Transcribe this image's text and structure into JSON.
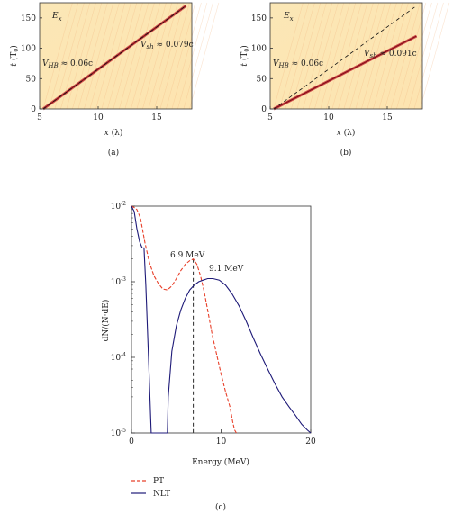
{
  "chart_data": [
    {
      "panel": "(a)",
      "type": "heatmap",
      "field_label": "E",
      "field_sub": "x",
      "xlabel_main": "x",
      "xlabel_unit": "(λ)",
      "ylabel_main": "t",
      "ylabel_unit_pre": "(T",
      "ylabel_unit_sub": "0",
      "ylabel_unit_post": ")",
      "xlim": [
        5,
        18
      ],
      "ylim": [
        0,
        175
      ],
      "xticks": [
        "5",
        "10",
        "15"
      ],
      "yticks": [
        "0",
        "50",
        "100",
        "150"
      ],
      "annotations": [
        {
          "V": "V",
          "sub": "HB",
          "rest": " ≈ 0.06c"
        },
        {
          "V": "V",
          "sub": "sh",
          "rest": " ≈ 0.079c"
        }
      ],
      "front_line": {
        "x": [
          5.3,
          17.5
        ],
        "t": [
          0,
          170
        ]
      },
      "dashed_line": {
        "x": [
          5.3,
          17.5
        ],
        "t": [
          0,
          170
        ]
      }
    },
    {
      "panel": "(b)",
      "type": "heatmap",
      "field_label": "E",
      "field_sub": "x",
      "xlabel_main": "x",
      "xlabel_unit": "(λ)",
      "ylabel_main": "t",
      "ylabel_unit_pre": "(T",
      "ylabel_unit_sub": "0",
      "ylabel_unit_post": ")",
      "xlim": [
        5,
        18
      ],
      "ylim": [
        0,
        175
      ],
      "xticks": [
        "5",
        "10",
        "15"
      ],
      "yticks": [
        "0",
        "50",
        "100",
        "150"
      ],
      "annotations": [
        {
          "V": "V",
          "sub": "HB",
          "rest": " ≈ 0.06c"
        },
        {
          "V": "V",
          "sub": "sh",
          "rest": " ≈ 0.091c"
        }
      ],
      "front_line": {
        "x": [
          5.3,
          17.5
        ],
        "t": [
          0,
          120
        ]
      },
      "dashed_line": {
        "x": [
          5.3,
          17.5
        ],
        "t": [
          0,
          170
        ]
      }
    },
    {
      "panel": "(c)",
      "type": "line",
      "xlabel": "Energy (MeV)",
      "ylabel": "dN/(N·dE)",
      "xlim": [
        0,
        20
      ],
      "ylim": [
        1e-05,
        0.01
      ],
      "log_y": true,
      "xticks": [
        "0",
        "10",
        "20"
      ],
      "yticks": [
        {
          "base": "10",
          "exp": "-2"
        },
        {
          "base": "10",
          "exp": "-3"
        },
        {
          "base": "10",
          "exp": "-4"
        },
        {
          "base": "10",
          "exp": "-5"
        }
      ],
      "series": [
        {
          "name": "PT",
          "color": "#e8402a",
          "style": "dashed",
          "x": [
            0,
            0.3,
            0.6,
            1.0,
            1.5,
            2.0,
            2.5,
            3.0,
            3.5,
            4.0,
            4.5,
            5.0,
            5.5,
            6.0,
            6.5,
            6.9,
            7.3,
            7.7,
            8.1,
            8.5,
            9.0,
            9.5,
            10.0,
            10.5,
            11.0,
            11.3,
            11.5,
            11.7
          ],
          "y": [
            0.01,
            0.0096,
            0.009,
            0.007,
            0.0033,
            0.0018,
            0.0012,
            0.00095,
            0.0008,
            0.00078,
            0.00088,
            0.0011,
            0.0014,
            0.0017,
            0.0019,
            0.002,
            0.0017,
            0.0012,
            0.00075,
            0.00042,
            0.0002,
            0.00011,
            6e-05,
            3.5e-05,
            2.2e-05,
            1.4e-05,
            1.1e-05,
            1e-05
          ]
        },
        {
          "name": "NLT",
          "color": "#1e1a78",
          "style": "solid",
          "x": [
            0,
            0.3,
            0.6,
            0.9,
            1.2,
            1.4,
            1.6,
            1.9,
            2.2,
            2.6,
            3.0,
            3.4,
            3.8,
            4.0,
            4.1,
            4.5,
            5.0,
            5.5,
            6.0,
            6.5,
            7.0,
            7.5,
            8.0,
            8.5,
            9.1,
            9.8,
            10.5,
            11.2,
            12.0,
            12.8,
            13.6,
            14.4,
            15.2,
            16.0,
            16.8,
            17.6,
            18.3,
            19.0,
            19.6,
            20.0
          ],
          "y": [
            0.01,
            0.0085,
            0.005,
            0.0034,
            0.0028,
            0.0028,
            0.0009,
            0.0001,
            1e-05,
            1e-05,
            1e-05,
            1e-05,
            1e-05,
            1e-05,
            3e-05,
            0.00012,
            0.00026,
            0.00042,
            0.0006,
            0.00078,
            0.0009,
            0.001,
            0.00105,
            0.0011,
            0.0011,
            0.00105,
            0.0009,
            0.0007,
            0.00048,
            0.0003,
            0.00018,
            0.00011,
            7e-05,
            4.5e-05,
            3e-05,
            2.2e-05,
            1.7e-05,
            1.3e-05,
            1.1e-05,
            1e-05
          ]
        }
      ],
      "annotations": [
        {
          "text": "6.9 MeV",
          "x": 6.9
        },
        {
          "text": "9.1 MeV",
          "x": 9.1
        }
      ],
      "vlines": [
        {
          "x": 6.9,
          "y": 0.002
        },
        {
          "x": 9.1,
          "y": 0.0011
        }
      ],
      "legend": [
        {
          "name": "PT",
          "style": "dashed",
          "color": "#e8402a"
        },
        {
          "name": "NLT",
          "style": "solid",
          "color": "#1e1a78"
        }
      ],
      "legend_position": "bottom-left"
    }
  ],
  "captions": {
    "a": "(a)",
    "b": "(b)",
    "c": "(c)"
  }
}
